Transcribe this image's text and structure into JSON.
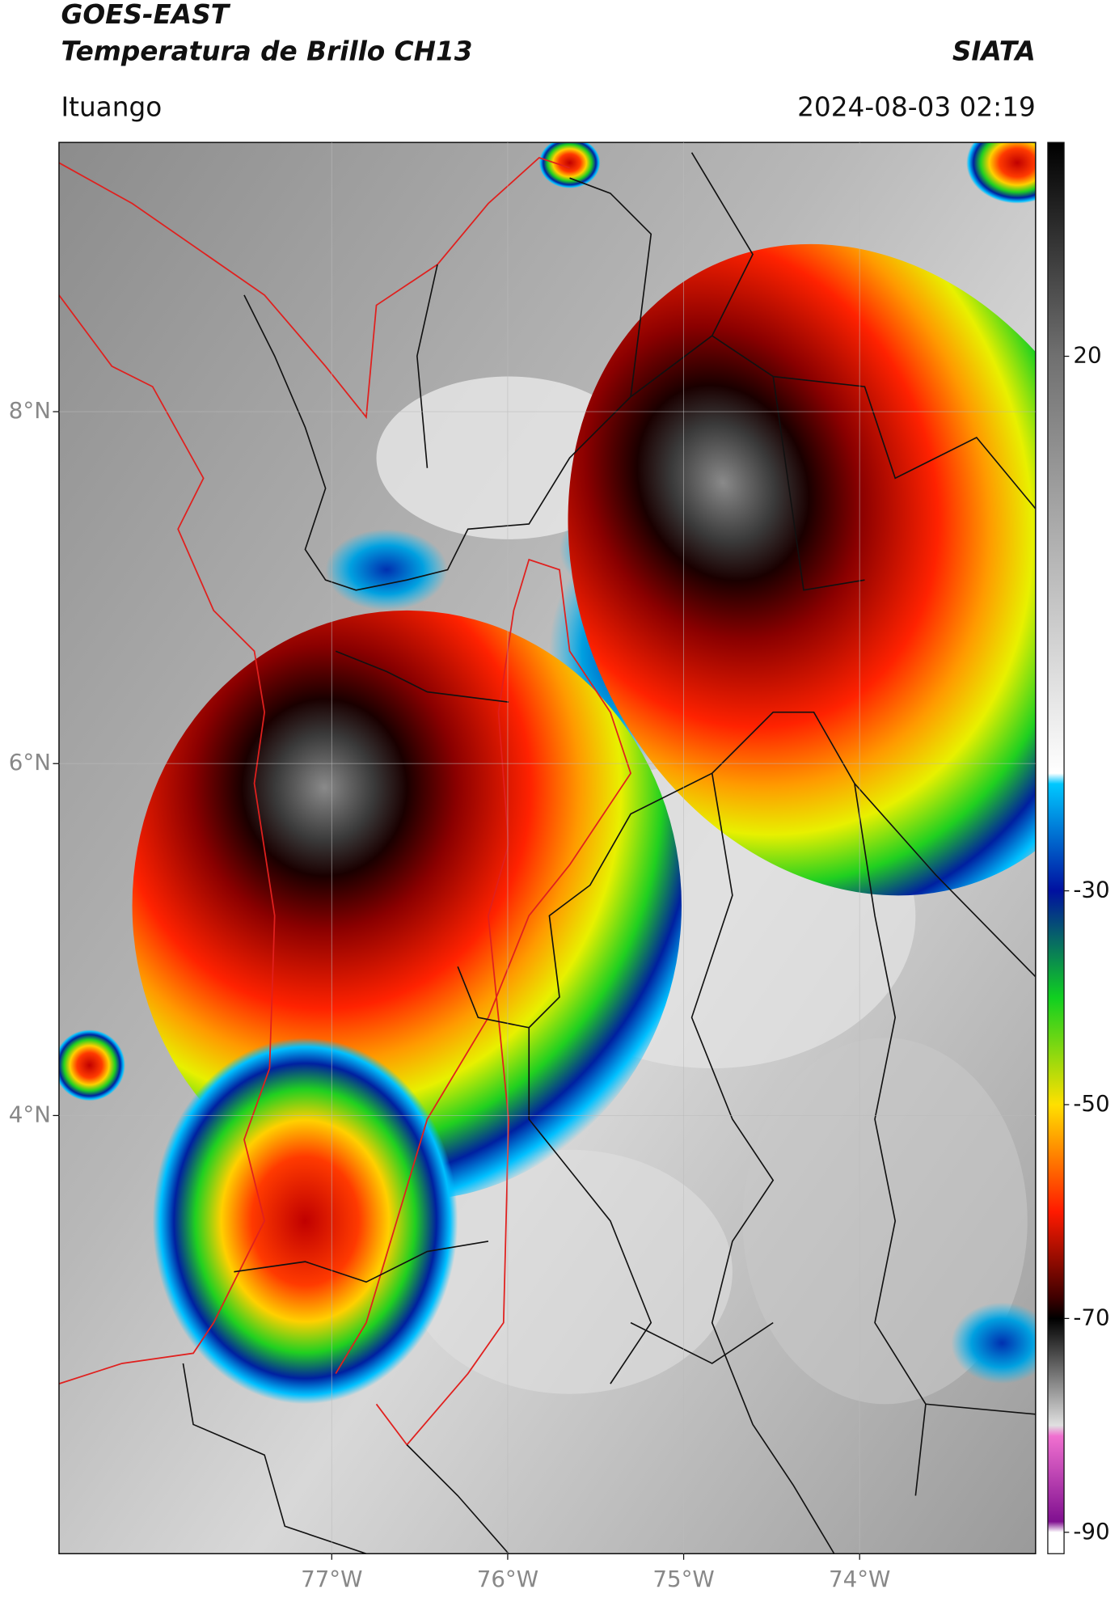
{
  "header": {
    "title": "GOES-EAST",
    "subtitle": "Temperatura de Brillo CH13",
    "source": "SIATA",
    "location": "Ituango",
    "timestamp": "2024-08-03 02:19"
  },
  "map": {
    "xlim": [
      -78.55,
      -73.0
    ],
    "ylim": [
      1.51,
      9.53
    ],
    "xticks": [
      {
        "value": -77,
        "label": "77°W"
      },
      {
        "value": -76,
        "label": "76°W"
      },
      {
        "value": -75,
        "label": "75°W"
      },
      {
        "value": -74,
        "label": "74°W"
      }
    ],
    "yticks": [
      {
        "value": 8,
        "label": "8°N"
      },
      {
        "value": 6,
        "label": "6°N"
      },
      {
        "value": 4,
        "label": "4°N"
      }
    ],
    "grid": true
  },
  "colorbar": {
    "lim": [
      -92,
      40
    ],
    "ticks": [
      20,
      -30,
      -50,
      -70,
      -90
    ],
    "colormap": [
      {
        "value": 40,
        "color": "#000000"
      },
      {
        "value": 20,
        "color": "#707070"
      },
      {
        "value": -19,
        "color": "#ffffff"
      },
      {
        "value": -20,
        "color": "#00c8ff"
      },
      {
        "value": -30,
        "color": "#0010a0"
      },
      {
        "value": -40,
        "color": "#10d020"
      },
      {
        "value": -50,
        "color": "#ffe000"
      },
      {
        "value": -60,
        "color": "#ff1a00"
      },
      {
        "value": -68,
        "color": "#400000"
      },
      {
        "value": -70,
        "color": "#000000"
      },
      {
        "value": -80,
        "color": "#e0e0e0"
      },
      {
        "value": -81,
        "color": "#f070d0"
      },
      {
        "value": -89,
        "color": "#801090"
      },
      {
        "value": -90,
        "color": "#ffffff"
      }
    ]
  }
}
